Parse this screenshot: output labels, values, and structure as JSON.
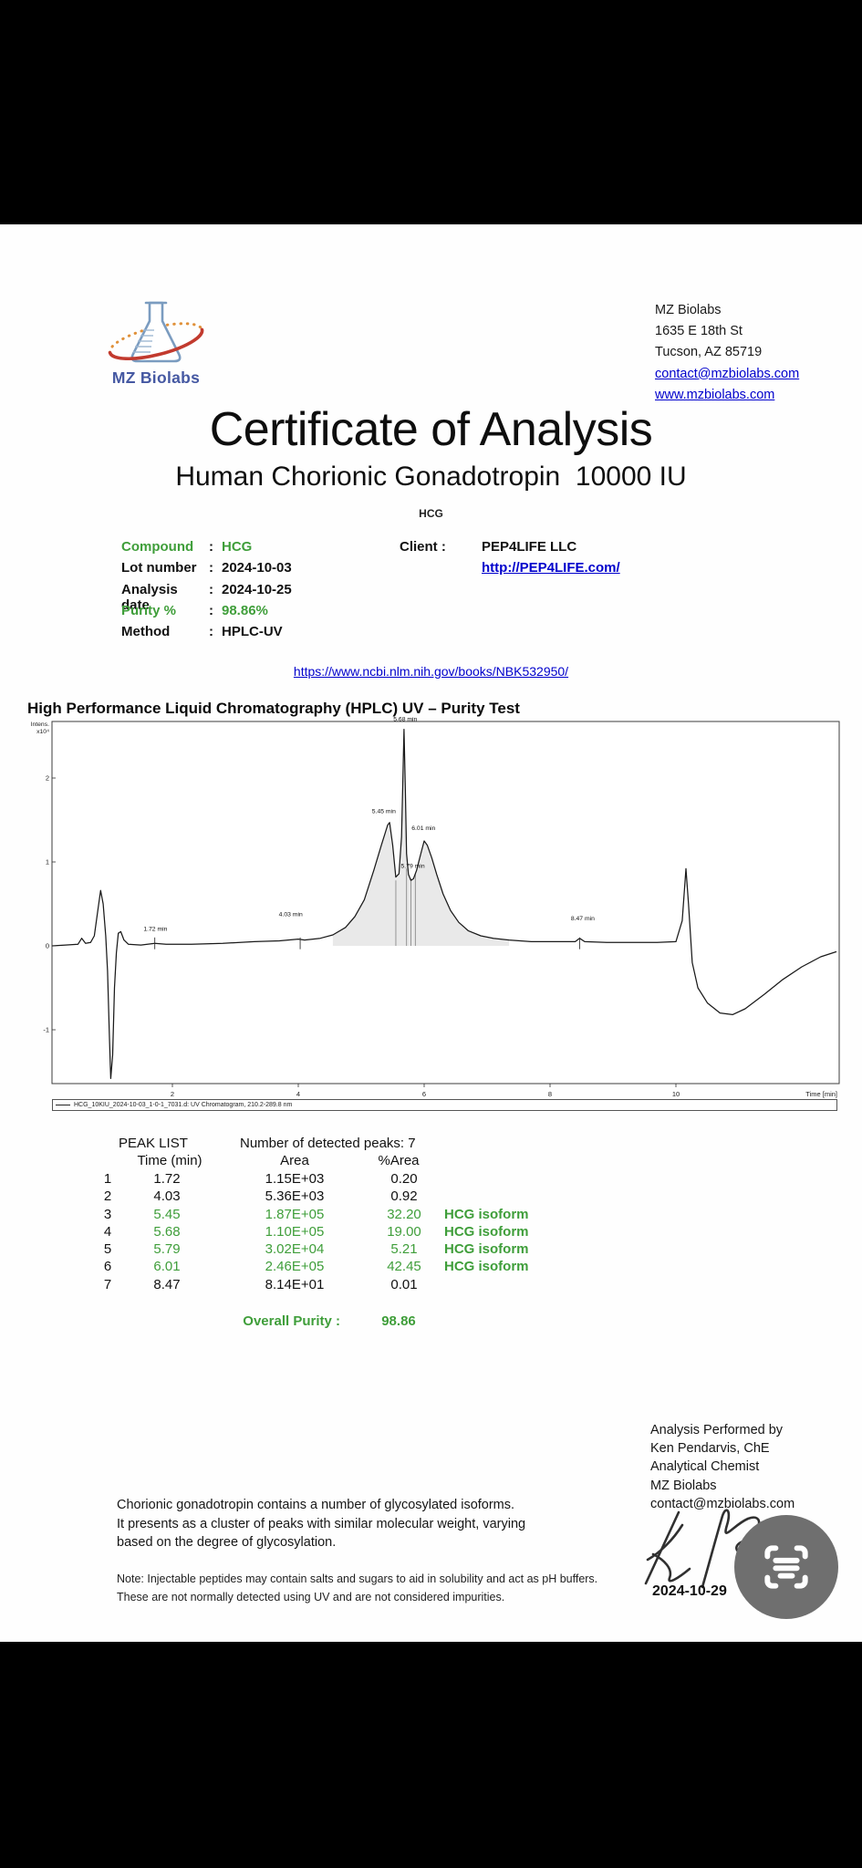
{
  "colors": {
    "green": "#3f9e3a",
    "link_blue": "#0000cc",
    "brand_blue": "#4558a2",
    "fab_gray": "#6f6f6f"
  },
  "header": {
    "brand": "MZ Biolabs",
    "address": {
      "line1": "MZ Biolabs",
      "line2": "1635 E 18th St",
      "line3": "Tucson, AZ 85719",
      "email": "contact@mzbiolabs.com",
      "website": "www.mzbiolabs.com"
    }
  },
  "title": {
    "main": "Certificate of Analysis",
    "subtitle": "Human Chorionic Gonadotropin  10000 IU",
    "abbr": "HCG"
  },
  "info": {
    "rows": [
      {
        "label": "Compound",
        "value": "HCG",
        "green": true
      },
      {
        "label": "Lot number",
        "value": "2024-10-03",
        "green": false
      },
      {
        "label": "Analysis date",
        "value": "2024-10-25",
        "green": false
      },
      {
        "label": "Purity %",
        "value": "98.86%",
        "green": true
      },
      {
        "label": "Method",
        "value": "HPLC-UV",
        "green": false
      }
    ],
    "client_label": "Client :",
    "client_name": "PEP4LIFE LLC",
    "client_url": "http://PEP4LIFE.com/"
  },
  "reference_link": "https://www.ncbi.nlm.nih.gov/books/NBK532950/",
  "section_heading": "High Performance Liquid Chromatography (HPLC) UV – Purity Test",
  "chart_data": {
    "type": "line",
    "title": "UV Chromatogram",
    "xlabel": "Time [min]",
    "ylabel": [
      "Intens.",
      "x10⁴"
    ],
    "xticks": [
      2,
      4,
      6,
      8,
      10
    ],
    "yticks": [
      2,
      1,
      0,
      -1
    ],
    "xlim": [
      0.09,
      12.59
    ],
    "ylim": [
      -1.64,
      2.67
    ],
    "grid": false,
    "legend": "HCG_10KIU_2024-10-03_1-0-1_7031.d: UV Chromatogram, 210.2-289.8 nm",
    "retention_times_min": [
      1.72,
      4.03,
      5.45,
      5.68,
      5.79,
      6.01,
      8.47
    ],
    "peak_labels": [
      {
        "text": "1.72 min",
        "t": 1.73,
        "v": 0.16
      },
      {
        "text": "4.03 min",
        "t": 3.88,
        "v": 0.33
      },
      {
        "text": "5.45 min",
        "t": 5.36,
        "v": 1.56
      },
      {
        "text": "5.68 min",
        "t": 5.7,
        "v": 2.66
      },
      {
        "text": "5.79 min",
        "t": 5.82,
        "v": 0.91
      },
      {
        "text": "6.01 min",
        "t": 5.99,
        "v": 1.36
      },
      {
        "text": "8.47 min",
        "t": 8.52,
        "v": 0.28
      }
    ],
    "baseline_markers": [
      1.72,
      4.03,
      8.47
    ],
    "shade_range": [
      4.55,
      7.35
    ],
    "integration_lines": [
      [
        5.55,
        0.78
      ],
      [
        5.72,
        0.92
      ],
      [
        5.79,
        0.8
      ],
      [
        5.86,
        0.86
      ]
    ],
    "curve_points": [
      [
        0.09,
        0
      ],
      [
        0.3,
        0.01
      ],
      [
        0.5,
        0.02
      ],
      [
        0.56,
        0.09
      ],
      [
        0.62,
        0.03
      ],
      [
        0.7,
        0.04
      ],
      [
        0.76,
        0.12
      ],
      [
        0.82,
        0.45
      ],
      [
        0.86,
        0.66
      ],
      [
        0.9,
        0.5
      ],
      [
        0.94,
        0.12
      ],
      [
        0.97,
        -0.3
      ],
      [
        1.0,
        -1.1
      ],
      [
        1.02,
        -1.58
      ],
      [
        1.05,
        -1.3
      ],
      [
        1.08,
        -0.5
      ],
      [
        1.11,
        -0.08
      ],
      [
        1.14,
        0.15
      ],
      [
        1.18,
        0.17
      ],
      [
        1.23,
        0.07
      ],
      [
        1.3,
        0.02
      ],
      [
        1.5,
        0.01
      ],
      [
        1.72,
        0.03
      ],
      [
        1.9,
        0.02
      ],
      [
        2.3,
        0.02
      ],
      [
        2.8,
        0.03
      ],
      [
        3.3,
        0.05
      ],
      [
        3.7,
        0.06
      ],
      [
        4.0,
        0.08
      ],
      [
        4.1,
        0.07
      ],
      [
        4.35,
        0.09
      ],
      [
        4.55,
        0.13
      ],
      [
        4.75,
        0.22
      ],
      [
        4.9,
        0.35
      ],
      [
        5.05,
        0.55
      ],
      [
        5.2,
        0.9
      ],
      [
        5.32,
        1.2
      ],
      [
        5.42,
        1.44
      ],
      [
        5.45,
        1.47
      ],
      [
        5.5,
        1.2
      ],
      [
        5.55,
        0.82
      ],
      [
        5.6,
        0.86
      ],
      [
        5.64,
        1.3
      ],
      [
        5.66,
        1.9
      ],
      [
        5.68,
        2.58
      ],
      [
        5.7,
        1.9
      ],
      [
        5.72,
        1.1
      ],
      [
        5.75,
        0.85
      ],
      [
        5.79,
        0.78
      ],
      [
        5.83,
        0.8
      ],
      [
        5.88,
        0.9
      ],
      [
        5.94,
        1.08
      ],
      [
        6.0,
        1.25
      ],
      [
        6.05,
        1.2
      ],
      [
        6.12,
        1.05
      ],
      [
        6.2,
        0.85
      ],
      [
        6.3,
        0.62
      ],
      [
        6.42,
        0.42
      ],
      [
        6.55,
        0.28
      ],
      [
        6.7,
        0.18
      ],
      [
        6.9,
        0.12
      ],
      [
        7.1,
        0.09
      ],
      [
        7.35,
        0.07
      ],
      [
        7.7,
        0.05
      ],
      [
        8.1,
        0.05
      ],
      [
        8.4,
        0.05
      ],
      [
        8.47,
        0.09
      ],
      [
        8.55,
        0.05
      ],
      [
        8.9,
        0.04
      ],
      [
        9.3,
        0.04
      ],
      [
        9.7,
        0.04
      ],
      [
        10.0,
        0.05
      ],
      [
        10.1,
        0.3
      ],
      [
        10.16,
        0.92
      ],
      [
        10.2,
        0.5
      ],
      [
        10.26,
        -0.2
      ],
      [
        10.35,
        -0.5
      ],
      [
        10.5,
        -0.68
      ],
      [
        10.7,
        -0.8
      ],
      [
        10.9,
        -0.82
      ],
      [
        11.1,
        -0.75
      ],
      [
        11.4,
        -0.58
      ],
      [
        11.7,
        -0.4
      ],
      [
        12.0,
        -0.25
      ],
      [
        12.3,
        -0.13
      ],
      [
        12.55,
        -0.07
      ]
    ]
  },
  "peak_table": {
    "title": "PEAK LIST",
    "detected": "Number of detected peaks: 7",
    "col_headers": {
      "time": "Time (min)",
      "area": "Area",
      "pct": "%Area"
    },
    "rows": [
      {
        "n": "1",
        "time": "1.72",
        "area": "1.15E+03",
        "pct": "0.20",
        "tag": "",
        "green": false
      },
      {
        "n": "2",
        "time": "4.03",
        "area": "5.36E+03",
        "pct": "0.92",
        "tag": "",
        "green": false
      },
      {
        "n": "3",
        "time": "5.45",
        "area": "1.87E+05",
        "pct": "32.20",
        "tag": "HCG isoform",
        "green": true
      },
      {
        "n": "4",
        "time": "5.68",
        "area": "1.10E+05",
        "pct": "19.00",
        "tag": "HCG isoform",
        "green": true
      },
      {
        "n": "5",
        "time": "5.79",
        "area": "3.02E+04",
        "pct": "5.21",
        "tag": "HCG isoform",
        "green": true
      },
      {
        "n": "6",
        "time": "6.01",
        "area": "2.46E+05",
        "pct": "42.45",
        "tag": "HCG isoform",
        "green": true
      },
      {
        "n": "7",
        "time": "8.47",
        "area": "8.14E+01",
        "pct": "0.01",
        "tag": "",
        "green": false
      }
    ],
    "overall_label": "Overall Purity :",
    "overall_value": "98.86"
  },
  "notes": {
    "paragraph": [
      "Chorionic gonadotropin contains a number of glycosylated isoforms.",
      "It presents as a cluster of peaks with similar molecular weight, varying",
      "based on the degree of glycosylation."
    ],
    "note_lines": [
      "Note: Injectable peptides may contain salts and sugars to aid in solubility and act as pH buffers.",
      "These are not normally detected using UV and are not considered impurities."
    ]
  },
  "signoff": {
    "lines": [
      "Analysis Performed by",
      "Ken Pendarvis, ChE",
      "Analytical Chemist",
      "MZ Biolabs",
      "contact@mzbiolabs.com"
    ],
    "date": "2024-10-29"
  }
}
